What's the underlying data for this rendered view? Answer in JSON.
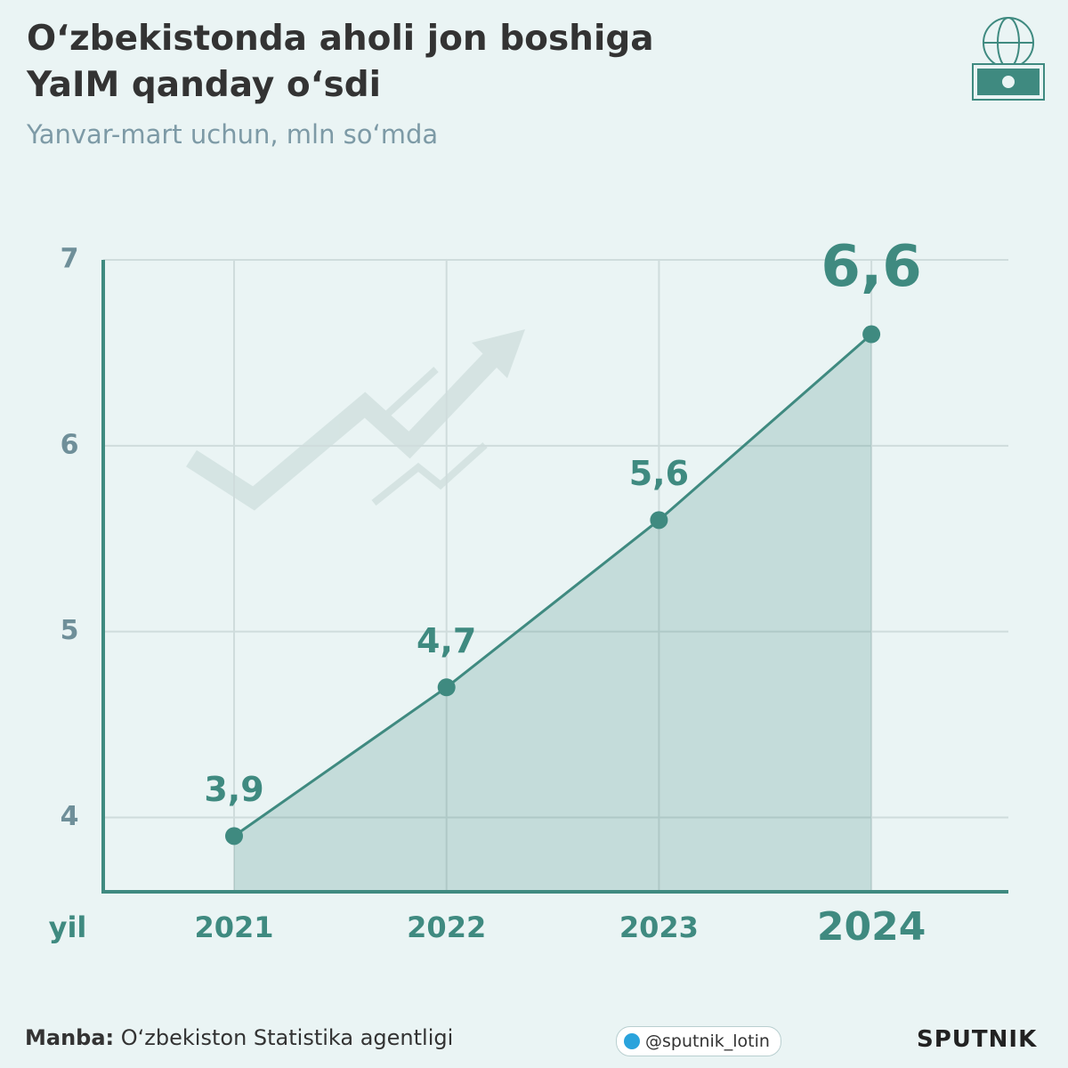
{
  "chart_data": {
    "type": "line",
    "title": "O‘zbekistonda aholi jon boshiga YaIM qanday o‘sdi",
    "subtitle": "Yanvar-mart uchun, mln so‘mda",
    "x_label": "yil",
    "categories": [
      "2021",
      "2022",
      "2023",
      "2024"
    ],
    "values": [
      3.9,
      4.7,
      5.6,
      6.6
    ],
    "value_labels": [
      "3,9",
      "4,7",
      "5,6",
      "6,6"
    ],
    "color": "#3f8a80",
    "ylim": [
      3.6,
      7
    ],
    "yticks": [
      4,
      5,
      6,
      7
    ],
    "grid": true
  },
  "footer": {
    "source_label": "Manba:",
    "source": "O‘zbekiston Statistika agentligi",
    "telegram": "@sputnik_lotin",
    "brand": "SPUTNIK"
  }
}
